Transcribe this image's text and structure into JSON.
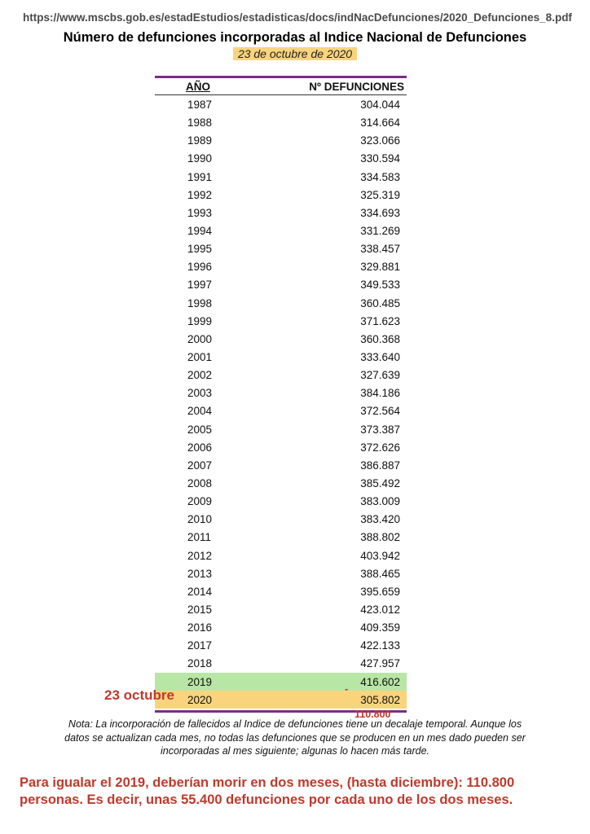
{
  "header": {
    "url": "https://www.mscbs.gob.es/estadEstudios/estadisticas/docs/indNacDefunciones/2020_Defunciones_8.pdf",
    "title": "Número de defunciones incorporadas al Indice Nacional de Defunciones",
    "date": "23 de octubre de 2020"
  },
  "table": {
    "col_year": "AÑO",
    "col_value": "Nº DEFUNCIONES",
    "rows": [
      {
        "year": "1987",
        "value": "304.044"
      },
      {
        "year": "1988",
        "value": "314.664"
      },
      {
        "year": "1989",
        "value": "323.066"
      },
      {
        "year": "1990",
        "value": "330.594"
      },
      {
        "year": "1991",
        "value": "334.583"
      },
      {
        "year": "1992",
        "value": "325.319"
      },
      {
        "year": "1993",
        "value": "334.693"
      },
      {
        "year": "1994",
        "value": "331.269"
      },
      {
        "year": "1995",
        "value": "338.457"
      },
      {
        "year": "1996",
        "value": "329.881"
      },
      {
        "year": "1997",
        "value": "349.533"
      },
      {
        "year": "1998",
        "value": "360.485"
      },
      {
        "year": "1999",
        "value": "371.623"
      },
      {
        "year": "2000",
        "value": "360.368"
      },
      {
        "year": "2001",
        "value": "333.640"
      },
      {
        "year": "2002",
        "value": "327.639"
      },
      {
        "year": "2003",
        "value": "384.186"
      },
      {
        "year": "2004",
        "value": "372.564"
      },
      {
        "year": "2005",
        "value": "373.387"
      },
      {
        "year": "2006",
        "value": "372.626"
      },
      {
        "year": "2007",
        "value": "386.887"
      },
      {
        "year": "2008",
        "value": "385.492"
      },
      {
        "year": "2009",
        "value": "383.009"
      },
      {
        "year": "2010",
        "value": "383.420"
      },
      {
        "year": "2011",
        "value": "388.802"
      },
      {
        "year": "2012",
        "value": "403.942"
      },
      {
        "year": "2013",
        "value": "388.465"
      },
      {
        "year": "2014",
        "value": "395.659"
      },
      {
        "year": "2015",
        "value": "423.012"
      },
      {
        "year": "2016",
        "value": "409.359"
      },
      {
        "year": "2017",
        "value": "422.133"
      },
      {
        "year": "2018",
        "value": "427.957"
      },
      {
        "year": "2019",
        "value": "416.602",
        "highlight": "green"
      },
      {
        "year": "2020",
        "value": "305.802",
        "highlight": "orange"
      }
    ]
  },
  "annotations": {
    "side_label": "23 octubre",
    "minus_mark": "-",
    "difference": "110.800"
  },
  "note": [
    "Nota: La incorporación de fallecidos al Indice de defunciones tiene un decalaje temporal. Aunque los",
    "datos se actualizan cada mes, no todas las defunciones  que se producen en un mes dado pueden ser",
    "incorporadas al mes siguiente; algunas lo hacen más tarde."
  ],
  "conclusion": [
    "Para igualar el 2019, deberían morir en dos meses, (hasta diciembre): 110.800",
    "personas. Es decir, unas 55.400 defunciones por cada uno de los dos meses."
  ],
  "colors": {
    "rule": "#7b2d87",
    "highlight_green": "#b8e6a4",
    "highlight_orange": "#f9d47d",
    "annotation_red": "#c0392b"
  }
}
